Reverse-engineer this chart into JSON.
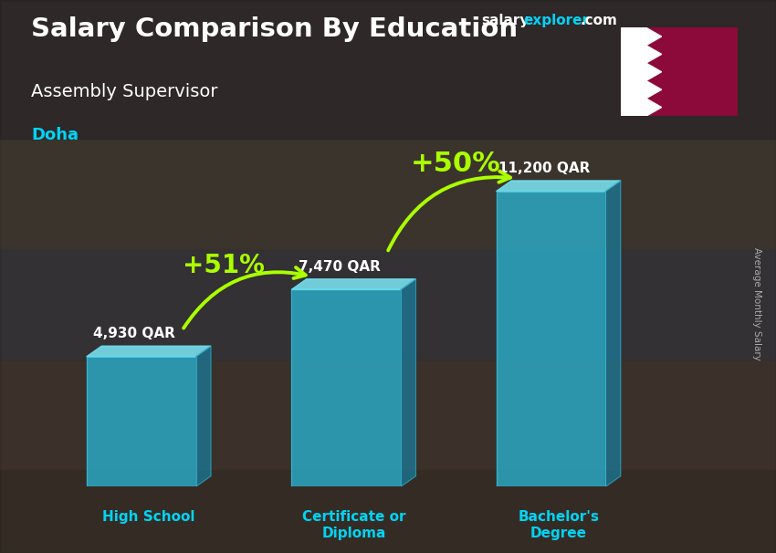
{
  "title_main": "Salary Comparison By Education",
  "title_sub": "Assembly Supervisor",
  "title_city": "Doha",
  "categories": [
    "High School",
    "Certificate or\nDiploma",
    "Bachelor's\nDegree"
  ],
  "values": [
    4930,
    7470,
    11200
  ],
  "bar_labels": [
    "4,930 QAR",
    "7,470 QAR",
    "11,200 QAR"
  ],
  "percent_labels": [
    "+51%",
    "+50%"
  ],
  "ylabel": "Average Monthly Salary",
  "site_salary_color": "#ffffff",
  "site_explorer_color": "#00d4f5",
  "site_com_color": "#ffffff",
  "flag_maroon": "#8b0a3a",
  "title_main_color": "#ffffff",
  "title_sub_color": "#ffffff",
  "city_color": "#00d4f5",
  "bar_label_color": "#ffffff",
  "pct_color": "#aaff00",
  "xlabel_color": "#00d4f5",
  "ylabel_color": "#aaaaaa",
  "bar_face_color": "#29b8d8",
  "bar_top_color": "#7de8f7",
  "bar_side_color": "#1a7a99",
  "bar_alpha": 0.75,
  "bg_color": "#4a4040",
  "figsize": [
    8.5,
    6.06
  ],
  "dpi": 100
}
